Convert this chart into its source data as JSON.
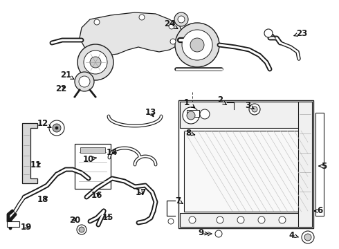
{
  "bg_color": "#ffffff",
  "line_color": "#1a1a1a",
  "figsize": [
    4.9,
    3.6
  ],
  "dpi": 100,
  "labels": [
    [
      "1",
      270,
      148,
      285,
      158,
      "right"
    ],
    [
      "2",
      318,
      145,
      328,
      152,
      "right"
    ],
    [
      "3",
      358,
      152,
      368,
      158,
      "right"
    ],
    [
      "4",
      422,
      340,
      432,
      343,
      "left"
    ],
    [
      "5",
      468,
      240,
      460,
      240,
      "left"
    ],
    [
      "6",
      462,
      305,
      453,
      305,
      "left"
    ],
    [
      "7",
      257,
      290,
      265,
      295,
      "right"
    ],
    [
      "8",
      272,
      192,
      285,
      196,
      "right"
    ],
    [
      "9",
      290,
      337,
      302,
      338,
      "right"
    ],
    [
      "10",
      128,
      230,
      140,
      228,
      "right"
    ],
    [
      "11",
      52,
      238,
      62,
      235,
      "right"
    ],
    [
      "12",
      62,
      178,
      75,
      185,
      "right"
    ],
    [
      "13",
      218,
      163,
      224,
      172,
      "right"
    ],
    [
      "14",
      162,
      220,
      172,
      222,
      "right"
    ],
    [
      "15",
      156,
      315,
      160,
      308,
      "right"
    ],
    [
      "16",
      140,
      282,
      148,
      278,
      "right"
    ],
    [
      "17",
      204,
      278,
      208,
      284,
      "right"
    ],
    [
      "18",
      62,
      288,
      72,
      283,
      "right"
    ],
    [
      "19",
      38,
      328,
      42,
      330,
      "right"
    ],
    [
      "20",
      108,
      318,
      112,
      322,
      "right"
    ],
    [
      "21",
      95,
      108,
      108,
      115,
      "right"
    ],
    [
      "22",
      88,
      128,
      98,
      125,
      "right"
    ],
    [
      "23",
      436,
      48,
      424,
      52,
      "left"
    ],
    [
      "24",
      245,
      35,
      258,
      42,
      "right"
    ]
  ]
}
